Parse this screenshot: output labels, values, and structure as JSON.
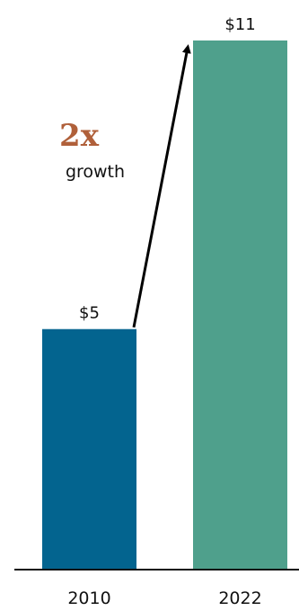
{
  "chart_data": {
    "type": "bar",
    "categories": [
      "2010",
      "2022"
    ],
    "values": [
      5,
      11
    ],
    "value_labels": [
      "$5",
      "$11"
    ],
    "bar_colors": [
      "#03648f",
      "#4fa08c"
    ],
    "ylim": [
      0,
      11
    ],
    "grid": false,
    "annotation": {
      "multiplier": "2x",
      "text": "growth",
      "multiplier_color": "#b0603a",
      "arrow_from": "2010",
      "arrow_to": "2022"
    }
  }
}
